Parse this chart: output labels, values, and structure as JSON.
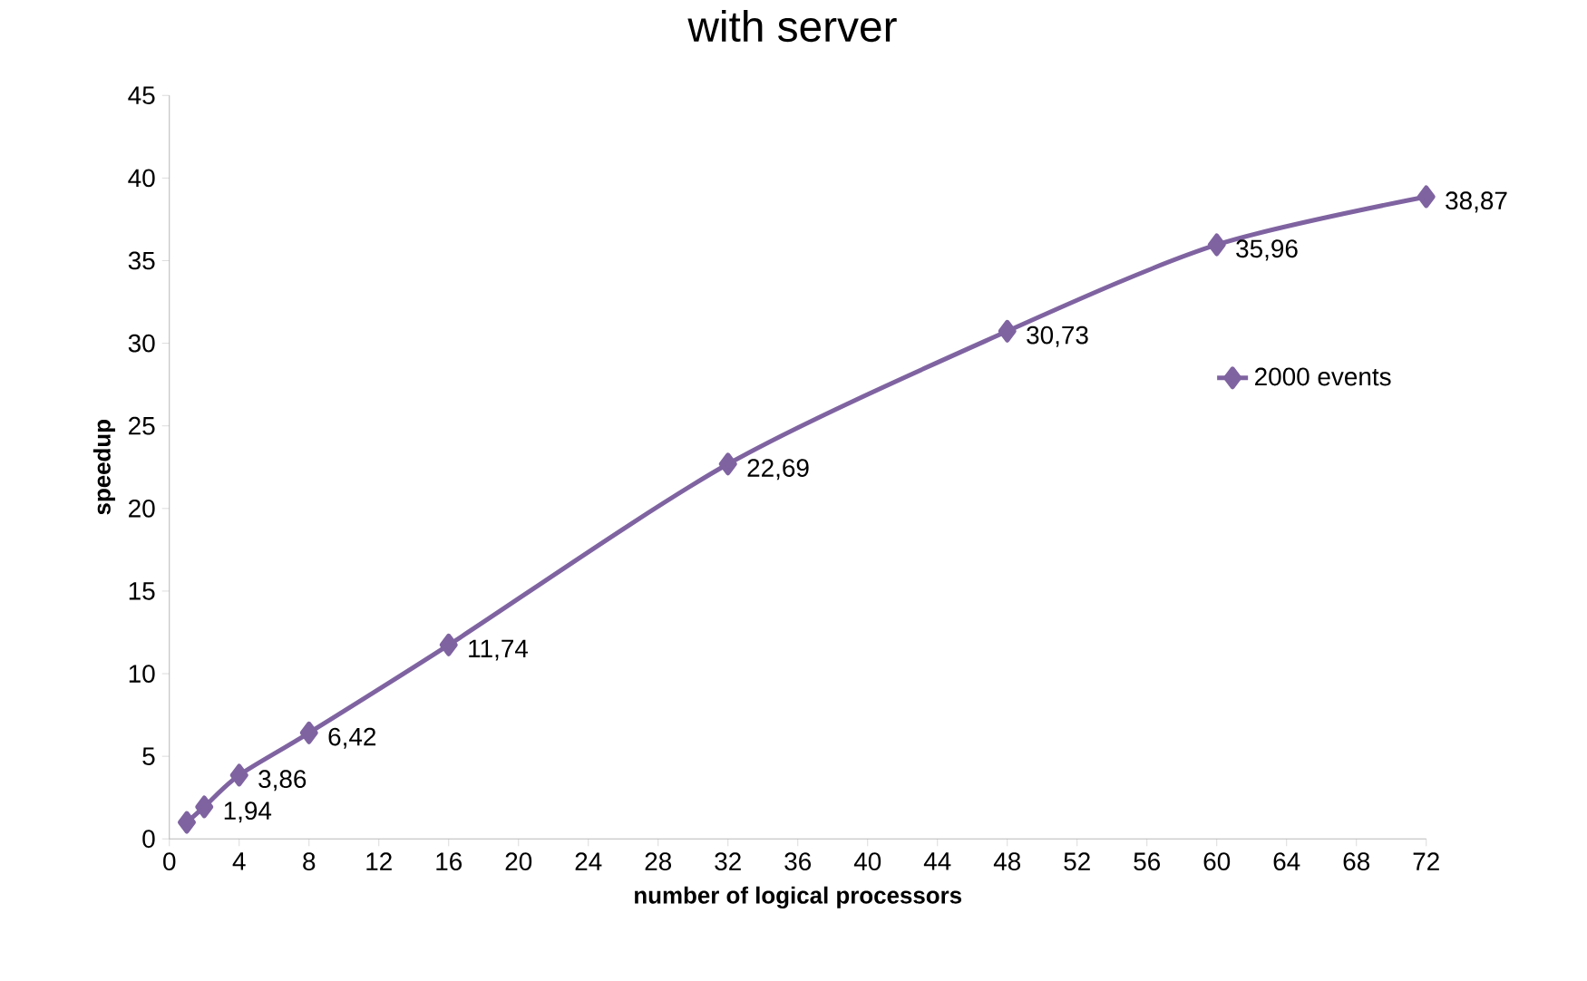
{
  "chart_data": {
    "type": "line",
    "title": "with server",
    "xlabel": "number of logical processors",
    "ylabel": "speedup",
    "x": [
      1,
      2,
      4,
      8,
      16,
      32,
      48,
      60,
      72
    ],
    "series": [
      {
        "name": "2000 events",
        "color": "#7f63a1",
        "values": [
          1,
          1.94,
          3.86,
          6.42,
          11.74,
          22.69,
          30.73,
          35.96,
          38.87
        ],
        "value_labels": [
          null,
          "1,94",
          "3,86",
          "6,42",
          "11,74",
          "22,69",
          "30,73",
          "35,96",
          "38,87"
        ]
      }
    ],
    "xlim": [
      0,
      72
    ],
    "ylim": [
      0,
      45
    ],
    "xticks": [
      0,
      4,
      8,
      12,
      16,
      20,
      24,
      28,
      32,
      36,
      40,
      44,
      48,
      52,
      56,
      60,
      64,
      68,
      72
    ],
    "yticks": [
      0,
      5,
      10,
      15,
      20,
      25,
      30,
      35,
      40,
      45
    ],
    "legend": "right",
    "marker": "diamond",
    "line_style": "solid",
    "grid": false
  }
}
